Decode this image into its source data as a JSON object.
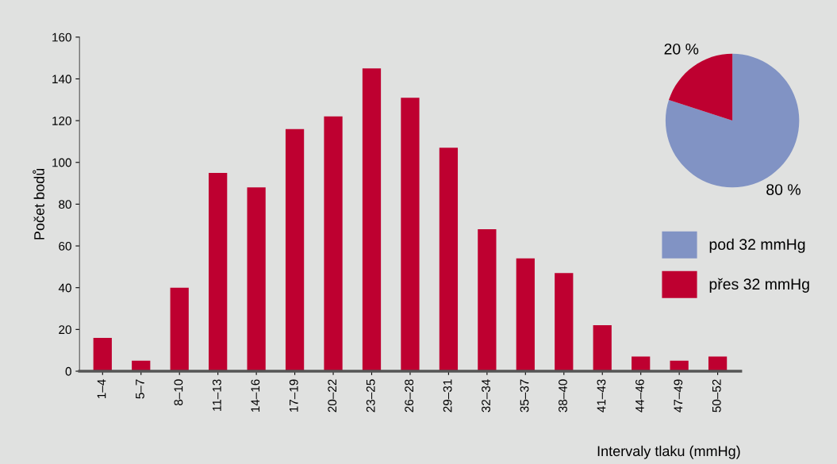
{
  "chart_data": [
    {
      "type": "bar",
      "xlabel": "Intervaly tlaku (mmHg)",
      "ylabel": "Počet bodů",
      "categories": [
        "1–4",
        "5–7",
        "8–10",
        "11–13",
        "14–16",
        "17–19",
        "20–22",
        "23–25",
        "26–28",
        "29–31",
        "32–34",
        "35–37",
        "38–40",
        "41–43",
        "44–46",
        "47–49",
        "50–52"
      ],
      "values": [
        16,
        5,
        40,
        95,
        88,
        116,
        122,
        145,
        131,
        107,
        68,
        54,
        47,
        22,
        7,
        5,
        7
      ],
      "color": "#be0030",
      "ylim": [
        0,
        160
      ],
      "yticks": [
        0,
        20,
        40,
        60,
        80,
        100,
        120,
        140,
        160
      ],
      "grid": false,
      "legend": false
    },
    {
      "type": "pie",
      "categories": [
        "pod 32 mmHg",
        "přes 32 mmHg"
      ],
      "values": [
        80,
        20
      ],
      "colors": [
        "#8193c4",
        "#be0030"
      ],
      "value_labels": [
        "80 %",
        "20 %"
      ],
      "legend": "bottom"
    }
  ]
}
